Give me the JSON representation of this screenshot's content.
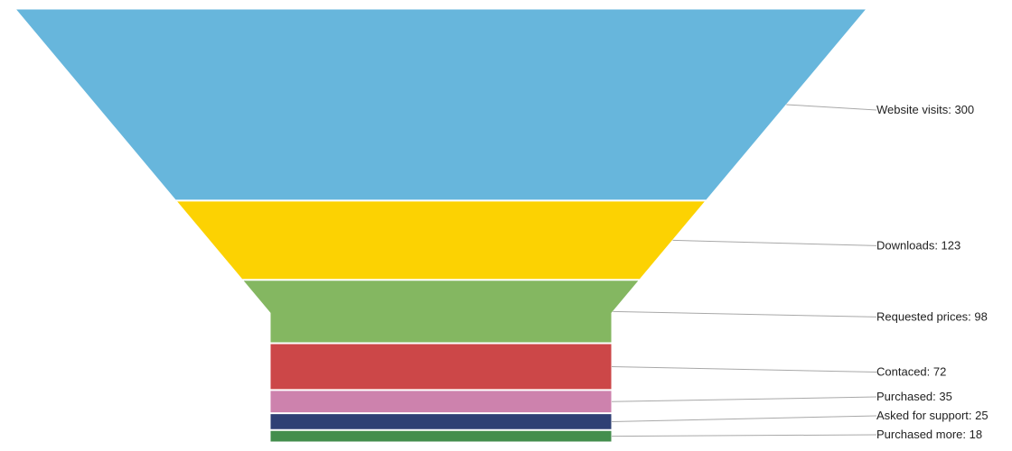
{
  "chart_data": {
    "type": "funnel",
    "title": "",
    "stages": [
      {
        "label": "Website visits",
        "value": 300,
        "color": "#67b6dc"
      },
      {
        "label": "Downloads",
        "value": 123,
        "color": "#fcd202"
      },
      {
        "label": "Requested prices",
        "value": 98,
        "color": "#84b761"
      },
      {
        "label": "Contaced",
        "value": 72,
        "color": "#cc4748"
      },
      {
        "label": "Purchased",
        "value": 35,
        "color": "#cd82ad"
      },
      {
        "label": "Asked for support",
        "value": 25,
        "color": "#2f4074"
      },
      {
        "label": "Purchased more",
        "value": 18,
        "color": "#448e4d"
      }
    ],
    "label_separator": ": ",
    "neck": "rectangular bottom section",
    "labels_position": "right",
    "leader_lines": true
  }
}
